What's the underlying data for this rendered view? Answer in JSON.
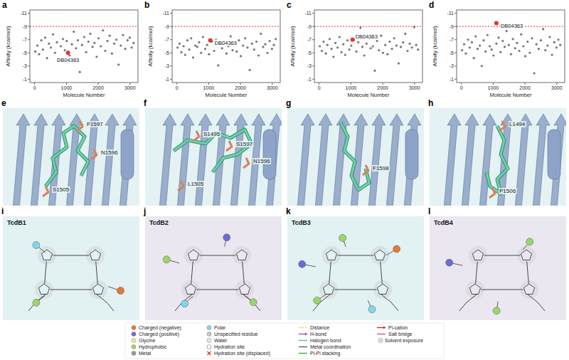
{
  "chart_data": [
    {
      "type": "scatter",
      "title": "a",
      "x_label": "Molecule Number",
      "y_label": "Affinity (kcal/mol)",
      "color": "#3a3a3a",
      "xlim": [
        -150,
        3250
      ],
      "xticks": [
        0,
        1000,
        2000,
        3000
      ],
      "ylim": [
        -0.5,
        -11.5
      ],
      "yticks": [
        -11,
        -9,
        -7,
        -5,
        -3,
        -1
      ],
      "threshold": -9,
      "x": [
        20,
        85,
        140,
        210,
        260,
        330,
        390,
        450,
        510,
        580,
        640,
        700,
        760,
        820,
        890,
        950,
        1010,
        1100,
        1170,
        1230,
        1300,
        1360,
        1420,
        1490,
        1560,
        1620,
        1690,
        1750,
        1820,
        1880,
        1950,
        2010,
        2080,
        2150,
        2220,
        2290,
        2360,
        2430,
        2500,
        2570,
        2640,
        2710,
        2780,
        2850,
        2920,
        2990,
        3050,
        3110
      ],
      "values": [
        -5.2,
        -6.1,
        -4.8,
        -6.9,
        -5.5,
        -7.3,
        -4.2,
        -6.4,
        -5.8,
        -7.8,
        -5.0,
        -6.6,
        -3.9,
        -6.0,
        -7.1,
        -5.4,
        -6.8,
        -4.6,
        -6.3,
        -8.2,
        -5.7,
        -6.9,
        -2.1,
        -6.2,
        -7.4,
        -5.1,
        -6.7,
        -7.9,
        -5.9,
        -6.5,
        -4.4,
        -7.2,
        -6.0,
        -8.4,
        -5.3,
        -6.8,
        -7.6,
        -4.9,
        -6.4,
        -7.0,
        -3.2,
        -6.1,
        -7.7,
        -5.6,
        -6.9,
        -7.3,
        -5.8,
        -6.5
      ],
      "highlight": {
        "label": "DB04363",
        "x": 1050,
        "value": -5.0,
        "color": "#e8312a"
      }
    },
    {
      "type": "scatter",
      "title": "b",
      "x_label": "Molecule Number",
      "y_label": "Affinity (kcal/mol)",
      "color": "#3a3a3a",
      "xlim": [
        -150,
        3250
      ],
      "xticks": [
        0,
        1000,
        2000,
        3000
      ],
      "ylim": [
        -0.5,
        -11.5
      ],
      "yticks": [
        -11,
        -9,
        -7,
        -5,
        -3,
        -1
      ],
      "threshold": -9,
      "x": [
        20,
        85,
        140,
        210,
        260,
        330,
        390,
        450,
        510,
        580,
        640,
        700,
        760,
        820,
        890,
        950,
        1010,
        1100,
        1170,
        1230,
        1300,
        1360,
        1420,
        1490,
        1560,
        1620,
        1690,
        1750,
        1820,
        1880,
        1950,
        2010,
        2080,
        2150,
        2220,
        2290,
        2360,
        2430,
        2500,
        2570,
        2640,
        2710,
        2780,
        2850,
        2920,
        2990,
        3050,
        3110
      ],
      "values": [
        -5.8,
        -6.4,
        -5.1,
        -6.0,
        -4.7,
        -6.9,
        -5.5,
        -7.2,
        -4.3,
        -6.1,
        -5.9,
        -6.6,
        -5.0,
        -7.4,
        -5.6,
        -6.2,
        -4.8,
        -6.7,
        -5.3,
        -7.0,
        -3.1,
        -6.3,
        -5.7,
        -6.8,
        -4.9,
        -6.0,
        -7.5,
        -5.4,
        -6.5,
        -5.2,
        -6.9,
        -4.5,
        -6.1,
        -7.2,
        -5.8,
        -2.4,
        -6.4,
        -5.5,
        -6.7,
        -4.6,
        -7.9,
        -5.9,
        -6.3,
        -5.0,
        -6.8,
        -5.6,
        -6.2,
        -7.1
      ],
      "highlight": {
        "label": "DB04363",
        "x": 1050,
        "value": -6.9,
        "color": "#e8312a"
      }
    },
    {
      "type": "scatter",
      "title": "c",
      "x_label": "Molecule Number",
      "y_label": "Affinity (kcal/mol)",
      "color": "#3a3a3a",
      "xlim": [
        -150,
        3250
      ],
      "xticks": [
        0,
        1000,
        2000,
        3000
      ],
      "ylim": [
        -0.5,
        -11.5
      ],
      "yticks": [
        -11,
        -9,
        -7,
        -5,
        -3,
        -1
      ],
      "threshold": -9,
      "x": [
        20,
        85,
        140,
        210,
        260,
        330,
        390,
        450,
        510,
        580,
        640,
        700,
        760,
        820,
        890,
        950,
        1010,
        1100,
        1170,
        1230,
        1300,
        1360,
        1420,
        1490,
        1560,
        1620,
        1690,
        1750,
        1820,
        1880,
        1950,
        2010,
        2080,
        2150,
        2220,
        2290,
        2360,
        2430,
        2500,
        2570,
        2640,
        2710,
        2780,
        2850,
        2920,
        2990,
        3050,
        3110
      ],
      "values": [
        -6.0,
        -5.3,
        -6.7,
        -4.9,
        -6.2,
        -7.1,
        -5.6,
        -4.4,
        -6.5,
        -5.8,
        -7.4,
        -5.1,
        -6.3,
        -4.7,
        -6.9,
        -5.5,
        -6.1,
        -7.0,
        -5.2,
        -6.6,
        -8.8,
        -5.9,
        -4.6,
        -6.4,
        -7.3,
        -5.7,
        -6.0,
        -2.3,
        -6.8,
        -5.4,
        -7.6,
        -5.0,
        -6.2,
        -4.8,
        -6.7,
        -5.6,
        -7.2,
        -6.1,
        -3.4,
        -5.9,
        -6.6,
        -7.9,
        -5.3,
        -6.4,
        -5.8,
        -8.9,
        -6.2,
        -5.5
      ],
      "highlight": {
        "label": "DB04363",
        "x": 1050,
        "value": -7.0,
        "color": "#e8312a"
      }
    },
    {
      "type": "scatter",
      "title": "d",
      "x_label": "Molecule Number",
      "y_label": "Affinity (kcal/mol)",
      "color": "#3a3a3a",
      "xlim": [
        -150,
        3250
      ],
      "xticks": [
        0,
        1000,
        2000,
        3000
      ],
      "ylim": [
        -0.5,
        -11.5
      ],
      "yticks": [
        -11,
        -9,
        -7,
        -5,
        -3,
        -1
      ],
      "threshold": -9,
      "x": [
        20,
        85,
        140,
        210,
        260,
        330,
        390,
        450,
        510,
        580,
        640,
        700,
        760,
        820,
        890,
        950,
        1010,
        1100,
        1170,
        1230,
        1300,
        1360,
        1420,
        1490,
        1560,
        1620,
        1690,
        1750,
        1820,
        1880,
        1950,
        2010,
        2080,
        2150,
        2220,
        2290,
        2360,
        2430,
        2500,
        2570,
        2640,
        2710,
        2780,
        2850,
        2920,
        2990,
        3050,
        3110
      ],
      "values": [
        -5.4,
        -6.3,
        -4.9,
        -7.0,
        -5.8,
        -6.6,
        -4.2,
        -7.5,
        -5.6,
        -6.1,
        -3.0,
        -6.9,
        -5.2,
        -7.7,
        -6.0,
        -5.5,
        -4.6,
        -6.4,
        -7.3,
        -5.1,
        -6.8,
        -5.9,
        -8.3,
        -6.2,
        -4.8,
        -7.1,
        -5.7,
        -6.5,
        -5.3,
        -7.8,
        -6.0,
        -4.5,
        -6.7,
        -5.0,
        -7.2,
        -1.9,
        -6.3,
        -5.6,
        -6.9,
        -8.6,
        -5.4,
        -6.1,
        -7.4,
        -4.7,
        -6.6,
        -5.8,
        -7.0,
        -6.2
      ],
      "highlight": {
        "label": "DB04363",
        "x": 1100,
        "value": -9.5,
        "color": "#e8312a"
      }
    }
  ],
  "structures": [
    {
      "letter": "e",
      "residues": [
        "F1597",
        "N1596",
        "S1505"
      ]
    },
    {
      "letter": "f",
      "residues": [
        "S1495",
        "S1597",
        "N1596",
        "L1505"
      ]
    },
    {
      "letter": "g",
      "residues": [
        "F1598"
      ]
    },
    {
      "letter": "h",
      "residues": [
        "L1494",
        "P1506"
      ]
    }
  ],
  "interaction_diagrams": [
    {
      "letter": "i",
      "title": "TcdB1"
    },
    {
      "letter": "j",
      "title": "TcdB2"
    },
    {
      "letter": "k",
      "title": "TcdB3"
    },
    {
      "letter": "l",
      "title": "TcdB4"
    }
  ],
  "interaction_legend": [
    {
      "label": "Charged (negative)",
      "color": "#e07b39",
      "marker": "circle"
    },
    {
      "label": "Charged (positive)",
      "color": "#6a6ad8",
      "marker": "circle"
    },
    {
      "label": "Glycine",
      "color": "#e8ef9a",
      "marker": "circle"
    },
    {
      "label": "Hydrophobic",
      "color": "#9bd66b",
      "marker": "circle"
    },
    {
      "label": "Metal",
      "color": "#999999",
      "marker": "circle"
    },
    {
      "label": "Polar",
      "color": "#7fd8e8",
      "marker": "circle"
    },
    {
      "label": "Unspecified residue",
      "color": "#c8c8c8",
      "marker": "circle"
    },
    {
      "label": "Water",
      "color": "#d8e8f0",
      "marker": "circle"
    },
    {
      "label": "Hydration site",
      "color": "#bbbbbb",
      "marker": "ring"
    },
    {
      "label": "Hydration site (displaced)",
      "color": "#e03030",
      "marker": "x"
    },
    {
      "label": "Distance",
      "color": "#e8c830",
      "line_style": "dotted"
    },
    {
      "label": "H-bond",
      "color": "#a040c0",
      "line_style": "arrow"
    },
    {
      "label": "Halogen bond",
      "color": "#40c0a0",
      "line_style": "solid"
    },
    {
      "label": "Metal coordination",
      "color": "#555555",
      "line_style": "solid"
    },
    {
      "label": "Pi-Pi stacking",
      "color": "#30a030",
      "line_style": "solid"
    },
    {
      "label": "Pi-cation",
      "color": "#d02020",
      "line_style": "arrow"
    },
    {
      "label": "Salt bridge",
      "color": "#c05080",
      "line_style": "solid"
    },
    {
      "label": "Solvent exposure",
      "color": "#bbbbbb",
      "marker": "halo"
    }
  ]
}
